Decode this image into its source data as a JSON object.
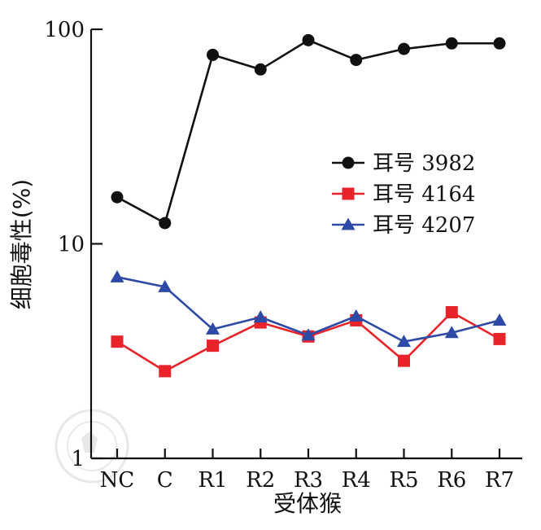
{
  "chart_data": {
    "type": "line",
    "xlabel": "受体猴",
    "ylabel": "细胞毒性(%)",
    "yscale": "log",
    "ylim": [
      1,
      100
    ],
    "yticks": [
      {
        "value": 1,
        "label": "1"
      },
      {
        "value": 10,
        "label": "10"
      },
      {
        "value": 100,
        "label": "100"
      }
    ],
    "categories": [
      "NC",
      "C",
      "R1",
      "R2",
      "R3",
      "R4",
      "R5",
      "R6",
      "R7"
    ],
    "legend_position": "right-middle",
    "series": [
      {
        "name": "耳号 3982",
        "color": "#111111",
        "marker": "circle",
        "line_color": "#111111",
        "values": [
          16.5,
          12.5,
          76,
          65,
          89,
          72,
          81,
          86,
          86
        ]
      },
      {
        "name": "耳号 4164",
        "color": "#e8232a",
        "marker": "square",
        "line_color": "#e8232a",
        "values": [
          3.5,
          2.55,
          3.35,
          4.3,
          3.7,
          4.4,
          2.85,
          4.8,
          3.6
        ]
      },
      {
        "name": "耳号 4207",
        "color": "#2c4aa6",
        "marker": "triangle",
        "line_color": "#2c4aa6",
        "values": [
          7.0,
          6.3,
          4.0,
          4.55,
          3.75,
          4.6,
          3.5,
          3.85,
          4.4
        ]
      }
    ]
  },
  "watermark": {
    "text": "中华医学会 CHINESE MEDICAL ASSOCIATION 1915"
  }
}
